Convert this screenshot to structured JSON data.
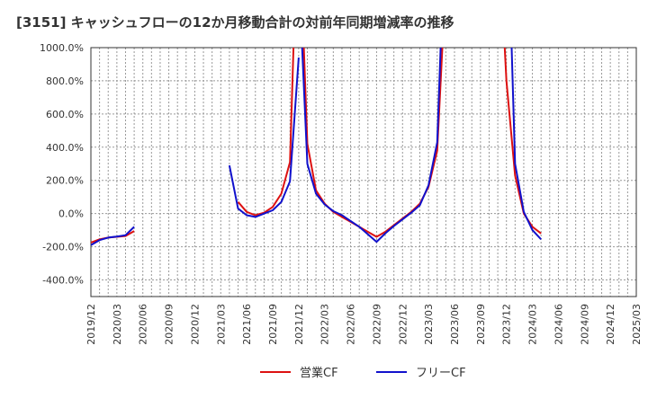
{
  "chart_data": {
    "type": "line",
    "title": "[3151]  キャッシュフローの12か月移動合計の対前年同期増減率の推移",
    "xlabel": "",
    "ylabel": "",
    "ylim": [
      -500,
      1000
    ],
    "yticks": [
      1000,
      800,
      600,
      400,
      200,
      0,
      -200,
      -400
    ],
    "ytick_labels": [
      "1000.0%",
      "800.0%",
      "600.0%",
      "400.0%",
      "200.0%",
      "0.0%",
      "-200.0%",
      "-400.0%"
    ],
    "x_labels": [
      "2019/12",
      "2020/03",
      "2020/06",
      "2020/09",
      "2020/12",
      "2021/03",
      "2021/06",
      "2021/09",
      "2021/12",
      "2022/03",
      "2022/06",
      "2022/09",
      "2022/12",
      "2023/03",
      "2023/06",
      "2023/09",
      "2023/12",
      "2024/03",
      "2024/06",
      "2024/09",
      "2024/12",
      "2025/03"
    ],
    "grid": true,
    "legend_position": "bottom",
    "series": [
      {
        "name": "営業CF",
        "color": "#dd1111",
        "segments": [
          [
            [
              0,
              -175
            ],
            [
              1,
              -155
            ],
            [
              2,
              -145
            ],
            [
              3,
              -140
            ],
            [
              4,
              -135
            ],
            [
              5,
              -105
            ]
          ],
          [
            [
              17,
              70
            ],
            [
              18,
              10
            ],
            [
              19,
              -10
            ],
            [
              20,
              5
            ],
            [
              21,
              40
            ],
            [
              22,
              120
            ],
            [
              23,
              310
            ],
            [
              23.4,
              1000
            ]
          ],
          [
            [
              24.6,
              1000
            ],
            [
              25,
              420
            ],
            [
              26,
              140
            ],
            [
              27,
              60
            ],
            [
              28,
              10
            ],
            [
              29,
              -20
            ],
            [
              30,
              -50
            ],
            [
              31,
              -80
            ],
            [
              32,
              -110
            ],
            [
              33,
              -140
            ],
            [
              34,
              -110
            ],
            [
              35,
              -70
            ],
            [
              36,
              -30
            ],
            [
              37,
              10
            ],
            [
              38,
              60
            ],
            [
              39,
              160
            ],
            [
              40,
              380
            ],
            [
              40.6,
              1000
            ]
          ],
          [
            [
              47.8,
              1000
            ],
            [
              48,
              800
            ],
            [
              49,
              230
            ],
            [
              50,
              0
            ],
            [
              51,
              -80
            ],
            [
              52,
              -120
            ]
          ]
        ]
      },
      {
        "name": "フリーCF",
        "color": "#1111cc",
        "segments": [
          [
            [
              0,
              -190
            ],
            [
              1,
              -160
            ],
            [
              2,
              -145
            ],
            [
              3,
              -138
            ],
            [
              4,
              -130
            ],
            [
              5,
              -80
            ]
          ],
          [
            [
              16,
              290
            ],
            [
              17,
              30
            ],
            [
              18,
              -10
            ],
            [
              19,
              -20
            ],
            [
              20,
              0
            ],
            [
              21,
              20
            ],
            [
              22,
              70
            ],
            [
              23,
              195
            ],
            [
              24,
              940
            ]
          ],
          [
            [
              24.4,
              1000
            ],
            [
              25,
              300
            ],
            [
              26,
              120
            ],
            [
              27,
              55
            ],
            [
              28,
              15
            ],
            [
              29,
              -10
            ],
            [
              30,
              -45
            ],
            [
              31,
              -80
            ],
            [
              32,
              -125
            ],
            [
              33,
              -170
            ],
            [
              34,
              -120
            ],
            [
              35,
              -75
            ],
            [
              36,
              -35
            ],
            [
              37,
              5
            ],
            [
              38,
              50
            ],
            [
              39,
              170
            ],
            [
              40,
              430
            ],
            [
              40.4,
              1000
            ]
          ],
          [
            [
              48.6,
              1000
            ],
            [
              49,
              300
            ],
            [
              50,
              10
            ],
            [
              51,
              -100
            ],
            [
              52,
              -155
            ]
          ]
        ]
      }
    ]
  }
}
